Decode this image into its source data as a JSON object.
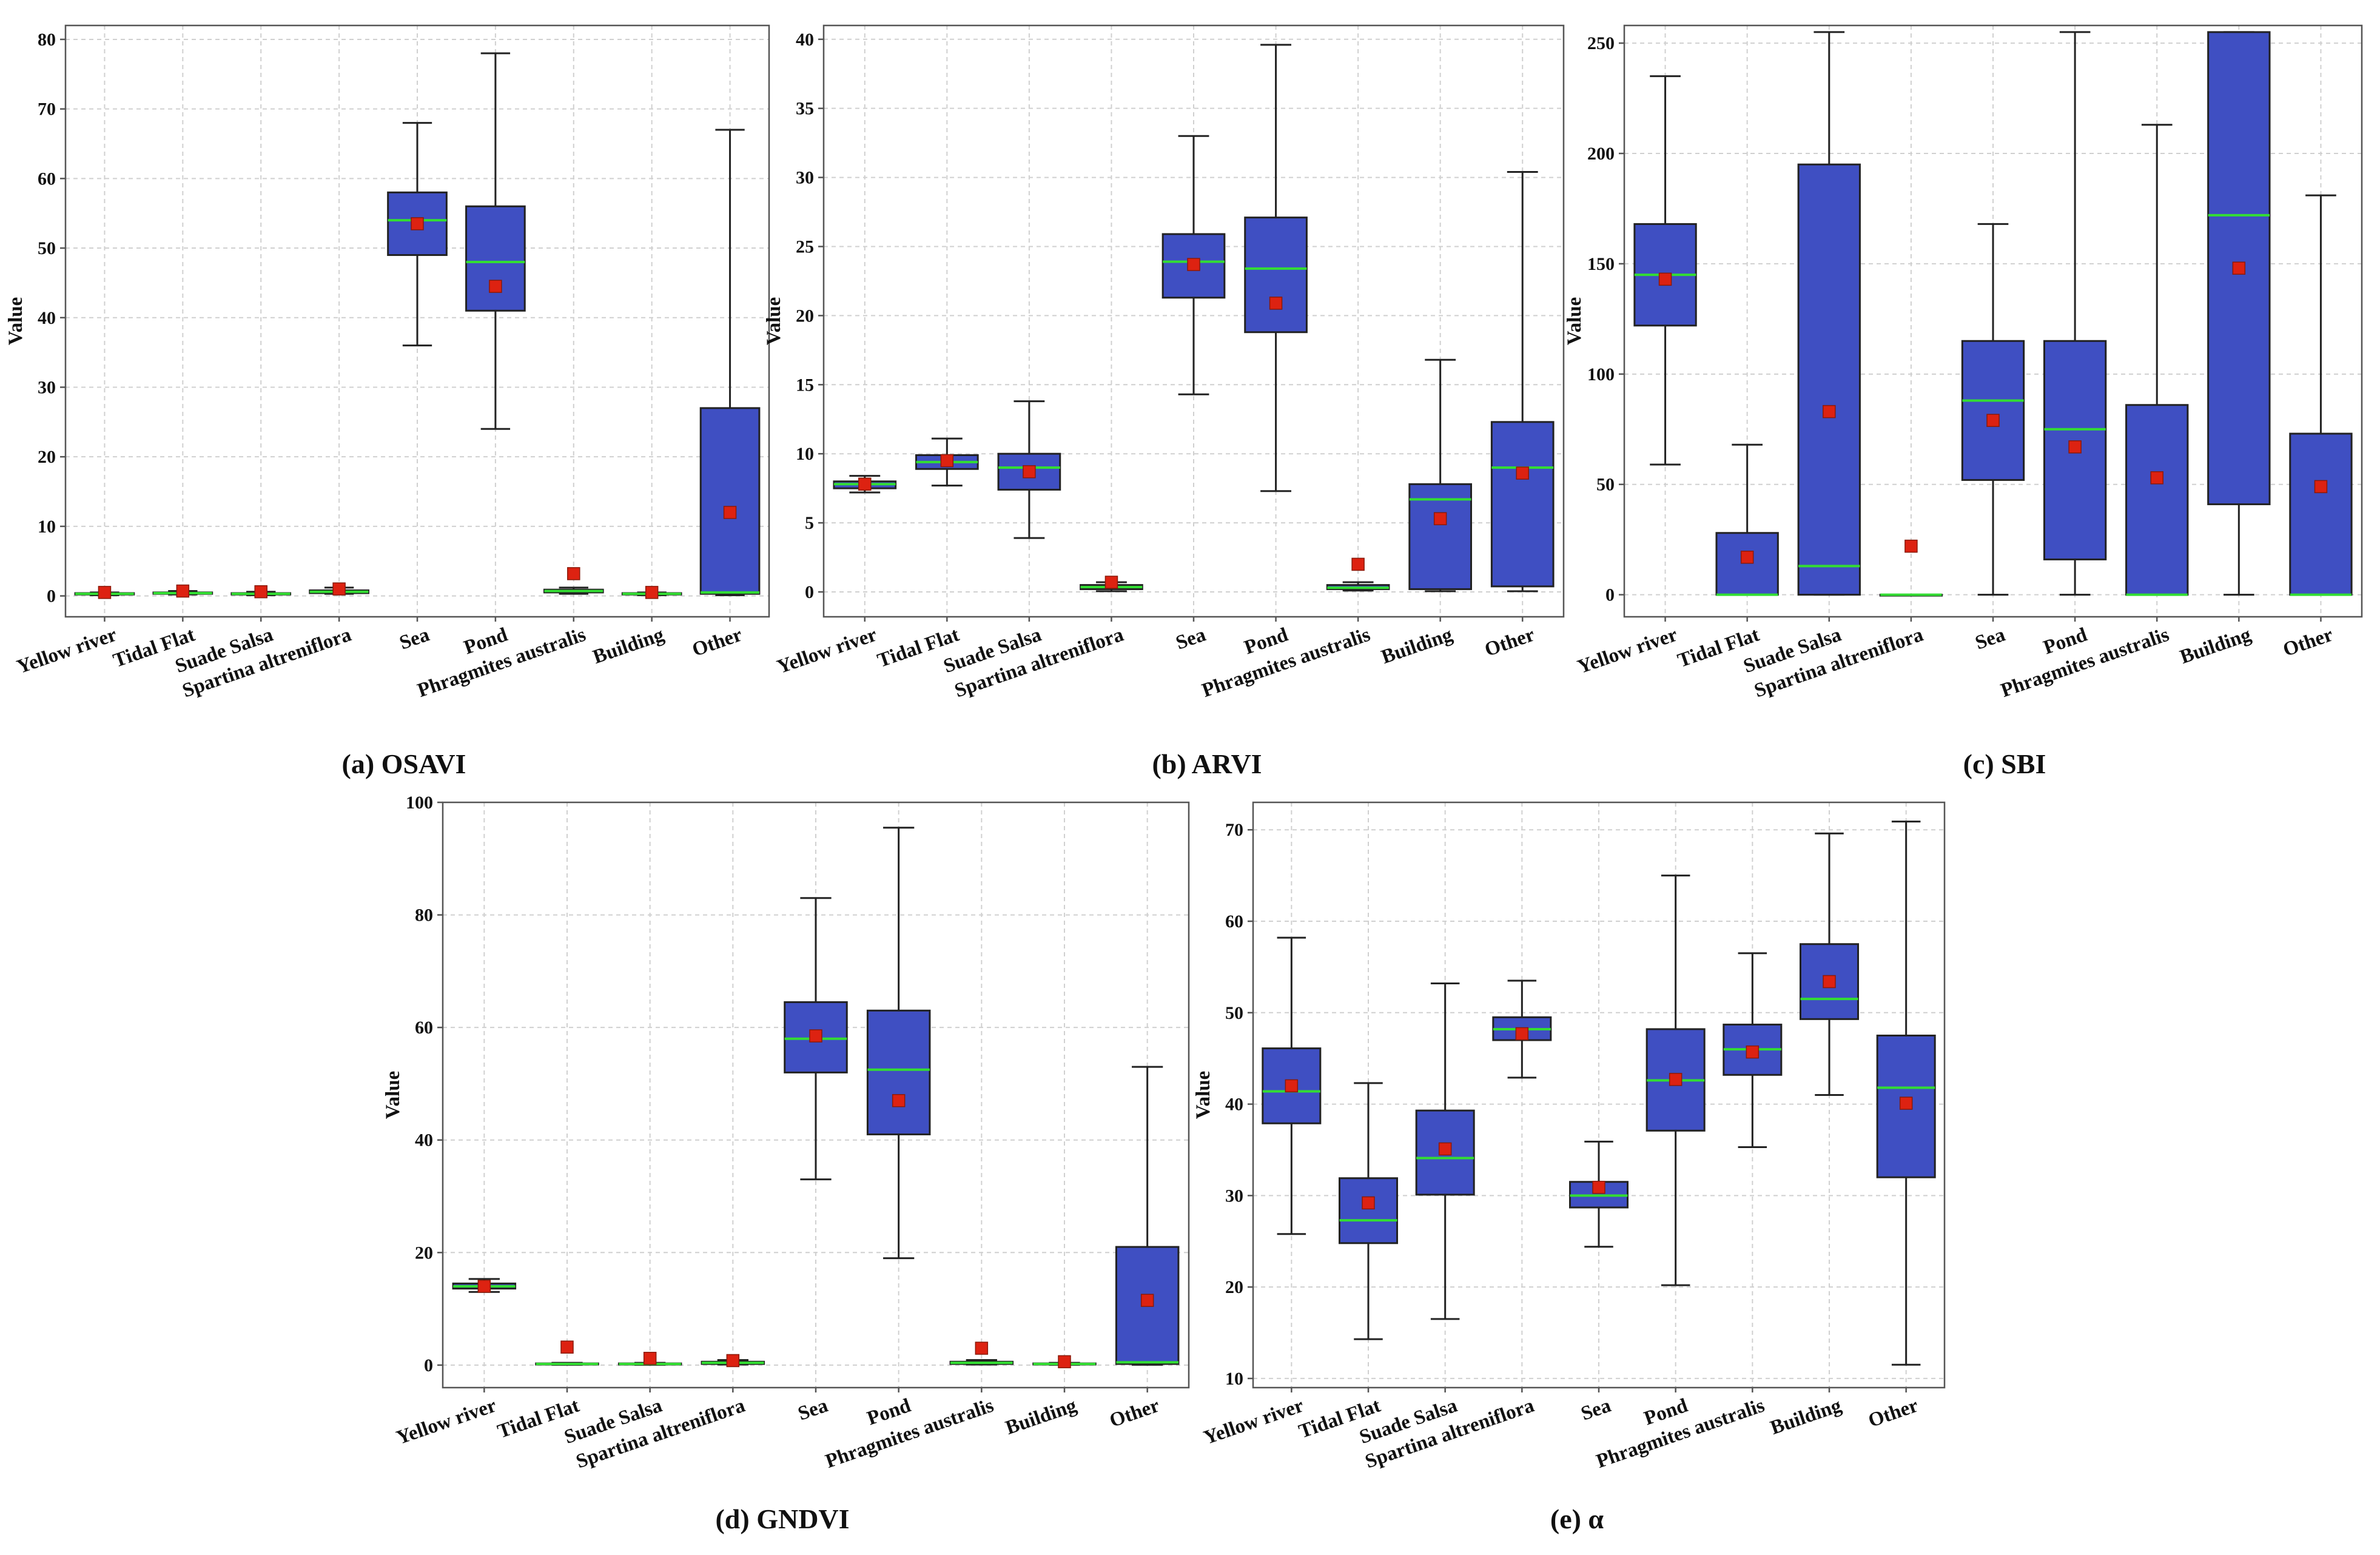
{
  "colors": {
    "box_fill": "#3f4fc2",
    "median": "#33dd33",
    "mean_marker": "#dd2211",
    "grid": "#d0d0d0",
    "axis": "#555555"
  },
  "chart_data": [
    {
      "type": "box",
      "caption": "(a) OSAVI",
      "ylabel": "Value",
      "ylim": [
        -3,
        82
      ],
      "yticks": [
        0,
        10,
        20,
        30,
        40,
        50,
        60,
        70,
        80
      ],
      "categories": [
        "Yellow river",
        "Tidal Flat",
        "Suade Salsa",
        "Spartina altreniflora",
        "Sea",
        "Pond",
        "Phragmites australis",
        "Building",
        "Other"
      ],
      "boxes": [
        {
          "min": 0.1,
          "q1": 0.2,
          "median": 0.3,
          "q3": 0.4,
          "max": 0.5,
          "mean": 0.5
        },
        {
          "min": 0.2,
          "q1": 0.3,
          "median": 0.4,
          "q3": 0.5,
          "max": 0.7,
          "mean": 0.7
        },
        {
          "min": 0.1,
          "q1": 0.2,
          "median": 0.3,
          "q3": 0.4,
          "max": 0.6,
          "mean": 0.6
        },
        {
          "min": 0.3,
          "q1": 0.4,
          "median": 0.6,
          "q3": 0.8,
          "max": 1.2,
          "mean": 1.0
        },
        {
          "min": 36,
          "q1": 49,
          "median": 54,
          "q3": 58,
          "max": 68,
          "mean": 53.5
        },
        {
          "min": 24,
          "q1": 41,
          "median": 48,
          "q3": 56,
          "max": 78,
          "mean": 44.5
        },
        {
          "min": 0.3,
          "q1": 0.5,
          "median": 0.7,
          "q3": 0.9,
          "max": 1.2,
          "mean": 3.2
        },
        {
          "min": 0.1,
          "q1": 0.2,
          "median": 0.3,
          "q3": 0.4,
          "max": 0.5,
          "mean": 0.5
        },
        {
          "min": 0.1,
          "q1": 0.3,
          "median": 0.5,
          "q3": 27,
          "max": 67,
          "mean": 12
        }
      ]
    },
    {
      "type": "box",
      "caption": "(b) ARVI",
      "ylabel": "Value",
      "ylim": [
        -1.8,
        41
      ],
      "yticks": [
        0,
        5,
        10,
        15,
        20,
        25,
        30,
        35,
        40
      ],
      "categories": [
        "Yellow river",
        "Tidal Flat",
        "Suade Salsa",
        "Spartina altreniflora",
        "Sea",
        "Pond",
        "Phragmites australis",
        "Building",
        "Other"
      ],
      "boxes": [
        {
          "min": 7.2,
          "q1": 7.5,
          "median": 7.8,
          "q3": 8.0,
          "max": 8.4,
          "mean": 7.8
        },
        {
          "min": 7.7,
          "q1": 8.9,
          "median": 9.4,
          "q3": 9.9,
          "max": 11.1,
          "mean": 9.5
        },
        {
          "min": 3.9,
          "q1": 7.4,
          "median": 9.0,
          "q3": 10.0,
          "max": 13.8,
          "mean": 8.7
        },
        {
          "min": 0.05,
          "q1": 0.2,
          "median": 0.35,
          "q3": 0.5,
          "max": 0.7,
          "mean": 0.7
        },
        {
          "min": 14.3,
          "q1": 21.3,
          "median": 23.9,
          "q3": 25.9,
          "max": 33,
          "mean": 23.7
        },
        {
          "min": 7.3,
          "q1": 18.8,
          "median": 23.4,
          "q3": 27.1,
          "max": 39.6,
          "mean": 20.9
        },
        {
          "min": 0.1,
          "q1": 0.2,
          "median": 0.3,
          "q3": 0.5,
          "max": 0.7,
          "mean": 2.0
        },
        {
          "min": 0.05,
          "q1": 0.2,
          "median": 6.7,
          "q3": 7.8,
          "max": 16.8,
          "mean": 5.3
        },
        {
          "min": 0.05,
          "q1": 0.4,
          "median": 9.0,
          "q3": 12.3,
          "max": 30.4,
          "mean": 8.6
        }
      ]
    },
    {
      "type": "box",
      "caption": "(c) SBI",
      "ylabel": "Value",
      "ylim": [
        -10,
        258
      ],
      "yticks": [
        0,
        50,
        100,
        150,
        200,
        250
      ],
      "categories": [
        "Yellow river",
        "Tidal Flat",
        "Suade Salsa",
        "Spartina altreniflora",
        "Sea",
        "Pond",
        "Phragmites australis",
        "Building",
        "Other"
      ],
      "boxes": [
        {
          "min": 59,
          "q1": 122,
          "median": 145,
          "q3": 168,
          "max": 235,
          "mean": 143
        },
        {
          "min": 0,
          "q1": 0,
          "median": 0,
          "q3": 28,
          "max": 68,
          "mean": 17
        },
        {
          "min": 0,
          "q1": 0,
          "median": 13,
          "q3": 195,
          "max": 255,
          "mean": 83
        },
        {
          "min": 0,
          "q1": 0,
          "median": 0,
          "q3": 0,
          "max": 0,
          "mean": 22
        },
        {
          "min": 0,
          "q1": 52,
          "median": 88,
          "q3": 115,
          "max": 168,
          "mean": 79
        },
        {
          "min": 0,
          "q1": 16,
          "median": 75,
          "q3": 115,
          "max": 255,
          "mean": 67
        },
        {
          "min": 0,
          "q1": 0,
          "median": 0,
          "q3": 86,
          "max": 213,
          "mean": 53
        },
        {
          "min": 0,
          "q1": 41,
          "median": 172,
          "q3": 255,
          "max": 255,
          "mean": 148
        },
        {
          "min": 0,
          "q1": 0,
          "median": 0,
          "q3": 73,
          "max": 181,
          "mean": 49
        }
      ]
    },
    {
      "type": "box",
      "caption": "(d) GNDVI",
      "ylabel": "Value",
      "ylim": [
        -4,
        100
      ],
      "yticks": [
        0,
        20,
        40,
        60,
        80,
        100
      ],
      "categories": [
        "Yellow river",
        "Tidal Flat",
        "Suade Salsa",
        "Spartina altreniflora",
        "Sea",
        "Pond",
        "Phragmites australis",
        "Building",
        "Other"
      ],
      "boxes": [
        {
          "min": 13,
          "q1": 13.6,
          "median": 14,
          "q3": 14.5,
          "max": 15.3,
          "mean": 14
        },
        {
          "min": 0.05,
          "q1": 0.1,
          "median": 0.2,
          "q3": 0.3,
          "max": 0.4,
          "mean": 3.2
        },
        {
          "min": 0.05,
          "q1": 0.1,
          "median": 0.2,
          "q3": 0.3,
          "max": 0.4,
          "mean": 1.2
        },
        {
          "min": 0.1,
          "q1": 0.2,
          "median": 0.4,
          "q3": 0.6,
          "max": 0.9,
          "mean": 0.8
        },
        {
          "min": 33,
          "q1": 52,
          "median": 58,
          "q3": 64.5,
          "max": 83,
          "mean": 58.5
        },
        {
          "min": 19,
          "q1": 41,
          "median": 52.5,
          "q3": 63,
          "max": 95.5,
          "mean": 47
        },
        {
          "min": 0.1,
          "q1": 0.2,
          "median": 0.4,
          "q3": 0.6,
          "max": 0.9,
          "mean": 3.0
        },
        {
          "min": 0.05,
          "q1": 0.1,
          "median": 0.2,
          "q3": 0.3,
          "max": 0.4,
          "mean": 0.6
        },
        {
          "min": 0.05,
          "q1": 0.2,
          "median": 0.5,
          "q3": 21,
          "max": 53,
          "mean": 11.5
        }
      ]
    },
    {
      "type": "box",
      "caption": "(e)  α",
      "ylabel": "Value",
      "ylim": [
        9,
        73
      ],
      "yticks": [
        10,
        20,
        30,
        40,
        50,
        60,
        70
      ],
      "categories": [
        "Yellow river",
        "Tidal Flat",
        "Suade Salsa",
        "Spartina altreniflora",
        "Sea",
        "Pond",
        "Phragmites australis",
        "Building",
        "Other"
      ],
      "boxes": [
        {
          "min": 25.8,
          "q1": 37.9,
          "median": 41.4,
          "q3": 46.1,
          "max": 58.2,
          "mean": 42
        },
        {
          "min": 14.3,
          "q1": 24.8,
          "median": 27.3,
          "q3": 31.9,
          "max": 42.3,
          "mean": 29.2
        },
        {
          "min": 16.5,
          "q1": 30.1,
          "median": 34.1,
          "q3": 39.3,
          "max": 53.2,
          "mean": 35.1
        },
        {
          "min": 42.9,
          "q1": 47.0,
          "median": 48.2,
          "q3": 49.5,
          "max": 53.5,
          "mean": 47.7
        },
        {
          "min": 24.4,
          "q1": 28.7,
          "median": 30.0,
          "q3": 31.5,
          "max": 35.9,
          "mean": 30.9
        },
        {
          "min": 20.2,
          "q1": 37.1,
          "median": 42.6,
          "q3": 48.2,
          "max": 65.0,
          "mean": 42.7
        },
        {
          "min": 35.3,
          "q1": 43.2,
          "median": 46.0,
          "q3": 48.7,
          "max": 56.5,
          "mean": 45.7
        },
        {
          "min": 41.0,
          "q1": 49.3,
          "median": 51.5,
          "q3": 57.5,
          "max": 69.6,
          "mean": 53.4
        },
        {
          "min": 11.5,
          "q1": 32.0,
          "median": 41.8,
          "q3": 47.5,
          "max": 70.9,
          "mean": 40.1
        }
      ]
    }
  ]
}
